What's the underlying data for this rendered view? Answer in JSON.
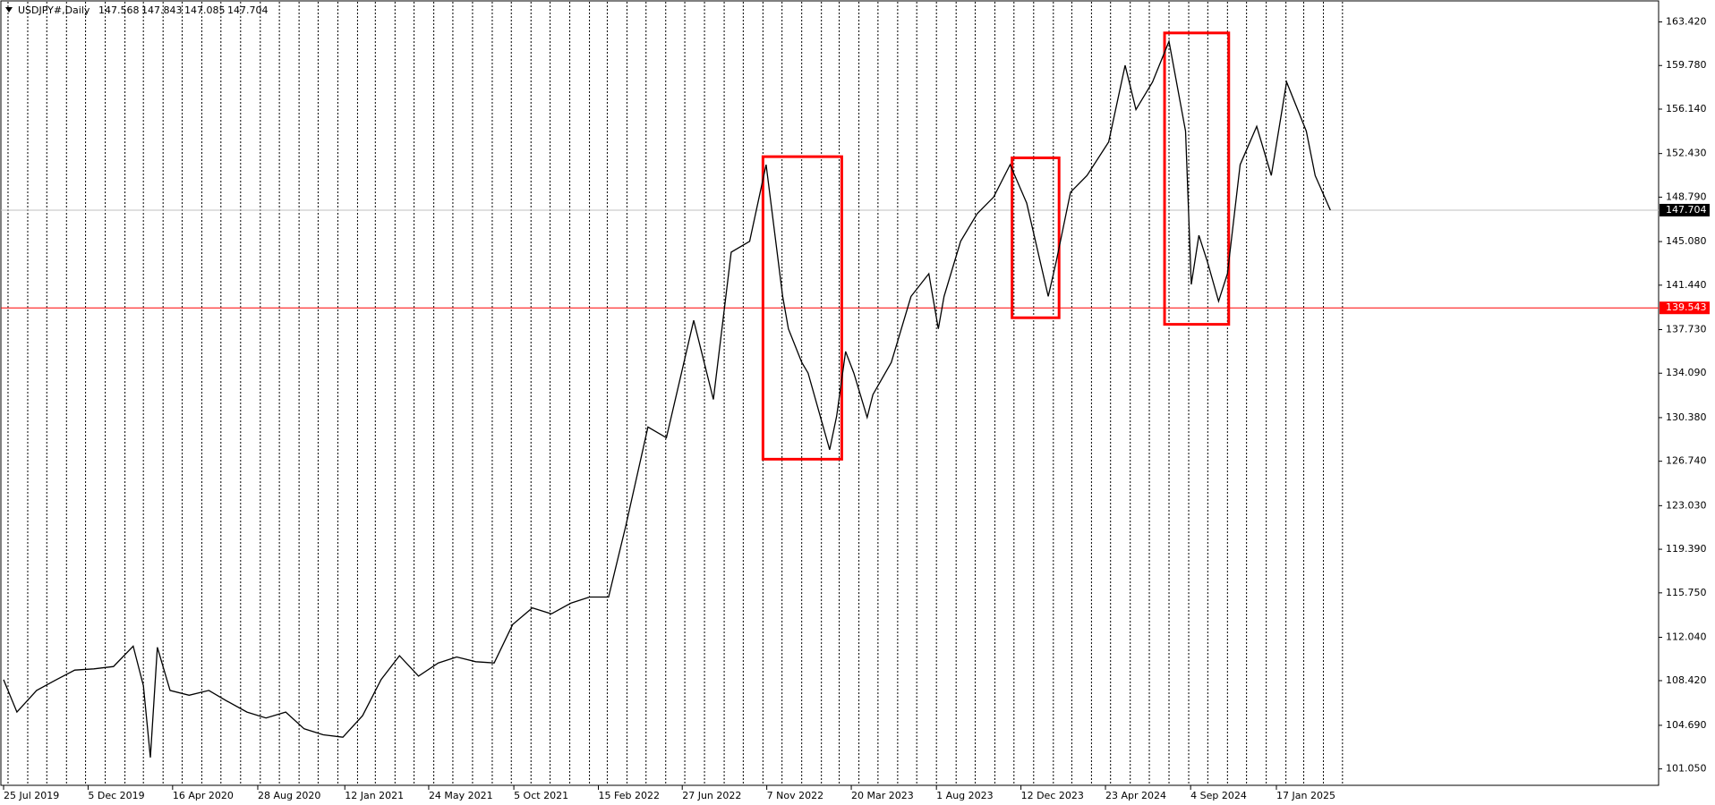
{
  "chart_data": {
    "type": "line",
    "header": {
      "symbol": "USDJPY#,Daily",
      "open": 147.568,
      "high": 147.843,
      "low": 147.085,
      "close": 147.704
    },
    "color": "#000000",
    "x": [
      "2019-07-25",
      "2019-08-15",
      "2019-09-15",
      "2019-10-16",
      "2019-11-14",
      "2019-12-14",
      "2020-01-14",
      "2020-02-14",
      "2020-03-01",
      "2020-03-12",
      "2020-03-23",
      "2020-04-12",
      "2020-05-12",
      "2020-06-12",
      "2020-07-11",
      "2020-08-11",
      "2020-09-10",
      "2020-10-11",
      "2020-11-09",
      "2020-12-09",
      "2021-01-09",
      "2021-02-09",
      "2021-03-10",
      "2021-04-08",
      "2021-05-08",
      "2021-06-08",
      "2021-07-07",
      "2021-08-06",
      "2021-09-04",
      "2021-10-03",
      "2021-11-03",
      "2021-12-03",
      "2022-01-03",
      "2022-02-01",
      "2022-03-03",
      "2022-03-30",
      "2022-05-04",
      "2022-06-02",
      "2022-07-15",
      "2022-08-15",
      "2022-09-12",
      "2022-10-11",
      "2022-11-06",
      "2022-12-02",
      "2022-12-11",
      "2023-01-01",
      "2023-01-11",
      "2023-02-14",
      "2023-02-25",
      "2023-03-11",
      "2023-03-24",
      "2023-04-14",
      "2023-04-23",
      "2023-05-22",
      "2023-06-22",
      "2023-07-20",
      "2023-08-04",
      "2023-08-13",
      "2023-09-08",
      "2023-10-04",
      "2023-10-30",
      "2023-11-25",
      "2023-12-21",
      "2024-01-24",
      "2024-02-05",
      "2024-02-28",
      "2024-03-25",
      "2024-04-28",
      "2024-05-24",
      "2024-06-10",
      "2024-07-06",
      "2024-08-01",
      "2024-08-27",
      "2024-09-05",
      "2024-09-17",
      "2024-10-01",
      "2024-10-18",
      "2024-11-01",
      "2024-11-21",
      "2024-12-17",
      "2025-01-09",
      "2025-02-02",
      "2025-03-05",
      "2025-03-19",
      "2025-04-12"
    ],
    "values": [
      108.5,
      105.8,
      107.6,
      108.5,
      109.3,
      109.4,
      109.6,
      111.3,
      108.0,
      102.0,
      111.2,
      107.6,
      107.2,
      107.6,
      106.7,
      105.8,
      105.3,
      105.8,
      104.4,
      103.9,
      103.7,
      105.5,
      108.5,
      110.5,
      108.8,
      109.9,
      110.4,
      110.0,
      109.9,
      113.1,
      114.5,
      114.0,
      114.9,
      115.4,
      115.4,
      121.3,
      129.6,
      128.7,
      138.5,
      131.9,
      144.2,
      145.1,
      151.5,
      140.5,
      137.8,
      135.0,
      134.1,
      127.7,
      130.5,
      135.9,
      134.1,
      130.4,
      132.3,
      135.0,
      140.5,
      142.4,
      137.8,
      140.5,
      145.1,
      147.4,
      148.8,
      151.5,
      148.3,
      140.5,
      143.3,
      149.2,
      150.6,
      153.4,
      159.8,
      156.1,
      158.4,
      161.8,
      154.3,
      141.5,
      145.6,
      143.3,
      140.1,
      142.4,
      151.5,
      154.7,
      150.6,
      158.4,
      154.3,
      150.6,
      147.7
    ],
    "ylim": [
      99.68,
      165.25
    ],
    "yticks": [
      {
        "value": 163.42,
        "label": "163.420"
      },
      {
        "value": 159.78,
        "label": "159.780"
      },
      {
        "value": 156.14,
        "label": "156.140"
      },
      {
        "value": 152.43,
        "label": "152.430"
      },
      {
        "value": 148.79,
        "label": "148.790"
      },
      {
        "value": 145.08,
        "label": "145.080"
      },
      {
        "value": 141.44,
        "label": "141.440"
      },
      {
        "value": 137.73,
        "label": "137.730"
      },
      {
        "value": 134.09,
        "label": "134.090"
      },
      {
        "value": 130.38,
        "label": "130.380"
      },
      {
        "value": 126.74,
        "label": "126.740"
      },
      {
        "value": 123.03,
        "label": "123.030"
      },
      {
        "value": 119.39,
        "label": "119.390"
      },
      {
        "value": 115.75,
        "label": "115.750"
      },
      {
        "value": 112.04,
        "label": "112.040"
      },
      {
        "value": 108.42,
        "label": "108.420"
      },
      {
        "value": 104.69,
        "label": "104.690"
      },
      {
        "value": 101.05,
        "label": "101.050"
      }
    ],
    "xticks": [
      {
        "value": "2019-07-25",
        "label": "25 Jul 2019"
      },
      {
        "value": "2019-12-05",
        "label": "5 Dec 2019"
      },
      {
        "value": "2020-04-16",
        "label": "16 Apr 2020"
      },
      {
        "value": "2020-08-28",
        "label": "28 Aug 2020"
      },
      {
        "value": "2021-01-12",
        "label": "12 Jan 2021"
      },
      {
        "value": "2021-05-24",
        "label": "24 May 2021"
      },
      {
        "value": "2021-10-05",
        "label": "5 Oct 2021"
      },
      {
        "value": "2022-02-15",
        "label": "15 Feb 2022"
      },
      {
        "value": "2022-06-27",
        "label": "27 Jun 2022"
      },
      {
        "value": "2022-11-07",
        "label": "7 Nov 2022"
      },
      {
        "value": "2023-03-20",
        "label": "20 Mar 2023"
      },
      {
        "value": "2023-08-01",
        "label": "1 Aug 2023"
      },
      {
        "value": "2023-12-12",
        "label": "12 Dec 2023"
      },
      {
        "value": "2024-04-23",
        "label": "23 Apr 2024"
      },
      {
        "value": "2024-09-04",
        "label": "4 Sep 2024"
      },
      {
        "value": "2025-01-17",
        "label": "17 Jan 2025"
      }
    ],
    "current_price": {
      "value": 147.704,
      "label": "147.704",
      "color": "#c0c0c0"
    },
    "hlines": [
      {
        "value": 139.543,
        "label": "139.543",
        "color": "#ff0000"
      }
    ],
    "rectangles": [
      {
        "x": [
          "2022-11-01",
          "2023-03-05"
        ],
        "y": [
          126.91,
          152.17
        ],
        "color": "#ff0000"
      },
      {
        "x": [
          "2023-11-28",
          "2024-02-10"
        ],
        "y": [
          138.72,
          152.07
        ],
        "color": "#ff0000"
      },
      {
        "x": [
          "2024-07-25",
          "2024-11-03"
        ],
        "y": [
          138.17,
          162.5
        ],
        "color": "#ff0000"
      }
    ]
  }
}
